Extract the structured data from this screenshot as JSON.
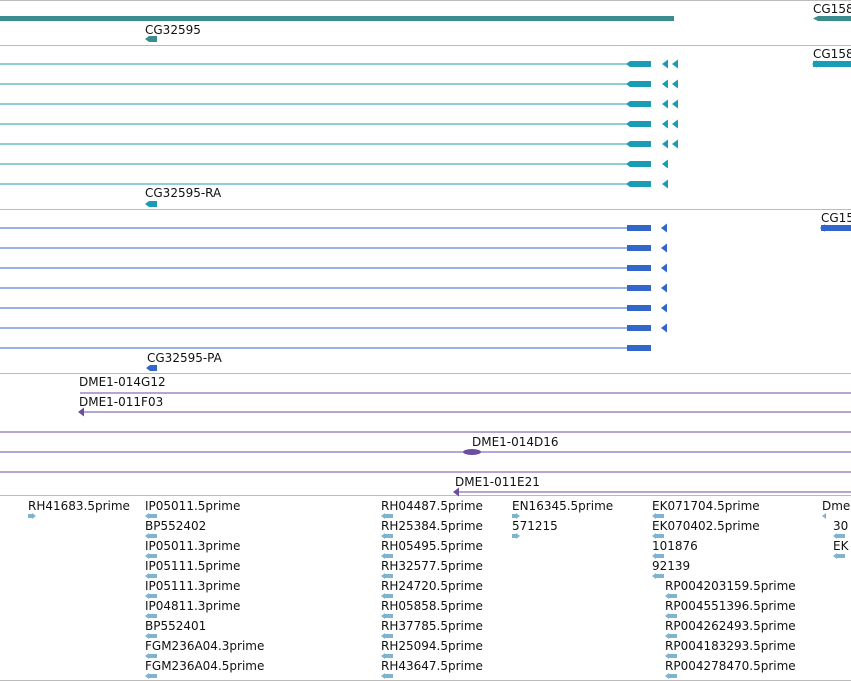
{
  "colors": {
    "gene": "#3b8c8c",
    "mrna": "#1a9cb4",
    "cds": "#3366cc",
    "clone": "#6a4ea0",
    "est": "#7fb3d0",
    "separator": "#bbbbbb"
  },
  "tracks": {
    "gene": {
      "labels": [
        {
          "text": "CG32595"
        },
        {
          "text": "CG158"
        }
      ]
    },
    "mrna": {
      "labels": [
        {
          "text": "CG32595-RA"
        },
        {
          "text": "CG158"
        }
      ]
    },
    "cds": {
      "labels": [
        {
          "text": "CG32595-PA"
        },
        {
          "text": "CG15"
        }
      ]
    },
    "clones": {
      "labels": [
        {
          "text": "DME1-014G12"
        },
        {
          "text": "DME1-011F03"
        },
        {
          "text": "DME1-014D16"
        },
        {
          "text": "DME1-011E21"
        }
      ]
    },
    "ests": {
      "labels": [
        {
          "text": "RH41683.5prime"
        },
        {
          "text": "IP05011.5prime"
        },
        {
          "text": "BP552402"
        },
        {
          "text": "IP05011.3prime"
        },
        {
          "text": "IP05111.5prime"
        },
        {
          "text": "IP05111.3prime"
        },
        {
          "text": "IP04811.3prime"
        },
        {
          "text": "BP552401"
        },
        {
          "text": "FGM236A04.3prime"
        },
        {
          "text": "FGM236A04.5prime"
        },
        {
          "text": "RH04487.5prime"
        },
        {
          "text": "RH25384.5prime"
        },
        {
          "text": "RH05495.5prime"
        },
        {
          "text": "RH32577.5prime"
        },
        {
          "text": "RH24720.5prime"
        },
        {
          "text": "RH05858.5prime"
        },
        {
          "text": "RH37785.5prime"
        },
        {
          "text": "RH25094.5prime"
        },
        {
          "text": "RH43647.5prime"
        },
        {
          "text": "EN16345.5prime"
        },
        {
          "text": "571215"
        },
        {
          "text": "EK071704.5prime"
        },
        {
          "text": "EK070402.5prime"
        },
        {
          "text": "101876"
        },
        {
          "text": "92139"
        },
        {
          "text": "RP004203159.5prime"
        },
        {
          "text": "RP004551396.5prime"
        },
        {
          "text": "RP004262493.5prime"
        },
        {
          "text": "RP004183293.5prime"
        },
        {
          "text": "RP004278470.5prime"
        },
        {
          "text": "Dmel"
        },
        {
          "text": "30"
        },
        {
          "text": "EK"
        }
      ]
    }
  }
}
